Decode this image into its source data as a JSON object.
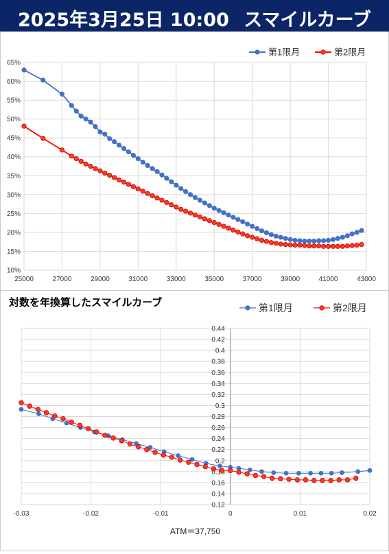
{
  "header": {
    "datetime": "2025年3月25日 10:00",
    "name": "スマイルカーブ"
  },
  "colors": {
    "header_bg": "#0b2566",
    "series1": "#4472c4",
    "series2": "#ff0000",
    "series2_fill": "#ff3b1f",
    "grid": "#d9d9d9"
  },
  "chart_data": [
    {
      "type": "line",
      "title": "",
      "xlabel": "",
      "ylabel": "",
      "xlim": [
        25000,
        43000
      ],
      "ylim": [
        0.1,
        0.65
      ],
      "x_ticks": [
        25000,
        27000,
        29000,
        31000,
        33000,
        35000,
        37000,
        39000,
        41000,
        43000
      ],
      "y_ticks": [
        0.1,
        0.15,
        0.2,
        0.25,
        0.3,
        0.35,
        0.4,
        0.45,
        0.5,
        0.55,
        0.6,
        0.65
      ],
      "y_tick_labels": [
        "10%",
        "15%",
        "20%",
        "25%",
        "30%",
        "35%",
        "40%",
        "45%",
        "50%",
        "55%",
        "60%",
        "65%"
      ],
      "legend": "top-right",
      "grid": true,
      "series": [
        {
          "name": "第1限月",
          "x": [
            25000,
            26000,
            27000,
            27500,
            27750,
            28000,
            28250,
            28500,
            28750,
            29000,
            29250,
            29500,
            29750,
            30000,
            30250,
            30500,
            30750,
            31000,
            31250,
            31500,
            31750,
            32000,
            32250,
            32500,
            32750,
            33000,
            33250,
            33500,
            33750,
            34000,
            34250,
            34500,
            34750,
            35000,
            35250,
            35500,
            35750,
            36000,
            36250,
            36500,
            36750,
            37000,
            37250,
            37500,
            37750,
            38000,
            38250,
            38500,
            38750,
            39000,
            39250,
            39500,
            39750,
            40000,
            40250,
            40500,
            40750,
            41000,
            41250,
            41500,
            41750,
            42000,
            42250,
            42500,
            42750
          ],
          "values": [
            0.63,
            0.603,
            0.566,
            0.536,
            0.521,
            0.508,
            0.5,
            0.492,
            0.48,
            0.466,
            0.46,
            0.448,
            0.44,
            0.431,
            0.422,
            0.413,
            0.404,
            0.395,
            0.386,
            0.377,
            0.369,
            0.361,
            0.352,
            0.343,
            0.334,
            0.325,
            0.316,
            0.308,
            0.3,
            0.292,
            0.285,
            0.278,
            0.271,
            0.264,
            0.258,
            0.252,
            0.246,
            0.24,
            0.234,
            0.228,
            0.222,
            0.216,
            0.21,
            0.204,
            0.199,
            0.194,
            0.19,
            0.187,
            0.184,
            0.181,
            0.179,
            0.178,
            0.177,
            0.177,
            0.177,
            0.178,
            0.178,
            0.179,
            0.181,
            0.184,
            0.187,
            0.191,
            0.196,
            0.2,
            0.205
          ]
        },
        {
          "name": "第2限月",
          "x": [
            25000,
            26000,
            27000,
            27500,
            27750,
            28000,
            28250,
            28500,
            28750,
            29000,
            29250,
            29500,
            29750,
            30000,
            30250,
            30500,
            30750,
            31000,
            31250,
            31500,
            31750,
            32000,
            32250,
            32500,
            32750,
            33000,
            33250,
            33500,
            33750,
            34000,
            34250,
            34500,
            34750,
            35000,
            35250,
            35500,
            35750,
            36000,
            36250,
            36500,
            36750,
            37000,
            37250,
            37500,
            37750,
            38000,
            38250,
            38500,
            38750,
            39000,
            39250,
            39500,
            39750,
            40000,
            40250,
            40500,
            40750,
            41000,
            41250,
            41500,
            41750,
            42000,
            42250,
            42500,
            42750
          ],
          "values": [
            0.481,
            0.449,
            0.418,
            0.402,
            0.395,
            0.388,
            0.381,
            0.375,
            0.369,
            0.363,
            0.357,
            0.351,
            0.345,
            0.339,
            0.333,
            0.327,
            0.321,
            0.315,
            0.309,
            0.303,
            0.297,
            0.291,
            0.285,
            0.279,
            0.273,
            0.267,
            0.261,
            0.256,
            0.251,
            0.246,
            0.241,
            0.236,
            0.231,
            0.226,
            0.221,
            0.216,
            0.211,
            0.206,
            0.201,
            0.196,
            0.191,
            0.187,
            0.183,
            0.179,
            0.176,
            0.173,
            0.171,
            0.169,
            0.168,
            0.167,
            0.166,
            0.166,
            0.165,
            0.164,
            0.164,
            0.164,
            0.163,
            0.163,
            0.163,
            0.163,
            0.163,
            0.164,
            0.165,
            0.166,
            0.168
          ]
        }
      ]
    },
    {
      "type": "line",
      "title": "対数を年換算したスマイルカーブ",
      "xlabel": "ATM＝37,750",
      "ylabel": "",
      "xlim": [
        -0.03,
        0.02
      ],
      "ylim": [
        0.12,
        0.44
      ],
      "x_ticks": [
        -0.03,
        -0.02,
        -0.01,
        0,
        0.01,
        0.02
      ],
      "x_tick_labels": [
        "-0.03",
        "-0.02",
        "-0.01",
        "0",
        "0.01",
        "0.02"
      ],
      "y_ticks": [
        0.12,
        0.14,
        0.16,
        0.18,
        0.2,
        0.22,
        0.24,
        0.26,
        0.28,
        0.3,
        0.32,
        0.34,
        0.36,
        0.38,
        0.4,
        0.42,
        0.44
      ],
      "y_tick_labels": [
        "0.12",
        "0.14",
        "0.16",
        "0.18",
        "0.2",
        "0.22",
        "0.24",
        "0.26",
        "0.28",
        "0.3",
        "0.32",
        "0.34",
        "0.36",
        "0.38",
        "0.4",
        "0.42",
        "0.44"
      ],
      "legend": "top-right",
      "grid": true,
      "series": [
        {
          "name": "第1限月",
          "x": [
            -0.03,
            -0.0275,
            -0.0255,
            -0.0235,
            -0.0215,
            -0.0195,
            -0.0175,
            -0.0155,
            -0.0135,
            -0.0115,
            -0.0095,
            -0.0075,
            -0.0055,
            -0.0035,
            -0.0015,
            0.0,
            0.0012,
            0.0028,
            0.0045,
            0.0062,
            0.008,
            0.0098,
            0.0115,
            0.013,
            0.0145,
            0.016,
            0.0183,
            0.02
          ],
          "values": [
            0.293,
            0.285,
            0.276,
            0.268,
            0.26,
            0.252,
            0.245,
            0.238,
            0.231,
            0.224,
            0.216,
            0.209,
            0.202,
            0.195,
            0.19,
            0.188,
            0.186,
            0.183,
            0.18,
            0.178,
            0.177,
            0.177,
            0.177,
            0.177,
            0.177,
            0.178,
            0.18,
            0.182
          ]
        },
        {
          "name": "第2限月",
          "x": [
            -0.03,
            -0.0288,
            -0.0276,
            -0.0264,
            -0.0252,
            -0.024,
            -0.0228,
            -0.0216,
            -0.0204,
            -0.0192,
            -0.018,
            -0.0168,
            -0.0156,
            -0.0144,
            -0.0132,
            -0.012,
            -0.0108,
            -0.0096,
            -0.0084,
            -0.0072,
            -0.006,
            -0.0048,
            -0.0036,
            -0.0024,
            -0.0012,
            0.0,
            0.0012,
            0.0024,
            0.0036,
            0.0048,
            0.006,
            0.0072,
            0.0084,
            0.0096,
            0.0108,
            0.012,
            0.0132,
            0.0144,
            0.0156,
            0.0168,
            0.018
          ],
          "values": [
            0.305,
            0.299,
            0.293,
            0.287,
            0.281,
            0.276,
            0.27,
            0.264,
            0.258,
            0.252,
            0.246,
            0.241,
            0.236,
            0.23,
            0.225,
            0.22,
            0.215,
            0.21,
            0.206,
            0.201,
            0.197,
            0.193,
            0.189,
            0.185,
            0.182,
            0.182,
            0.179,
            0.176,
            0.173,
            0.171,
            0.168,
            0.167,
            0.166,
            0.165,
            0.165,
            0.164,
            0.164,
            0.164,
            0.165,
            0.165,
            0.168
          ]
        }
      ]
    }
  ]
}
